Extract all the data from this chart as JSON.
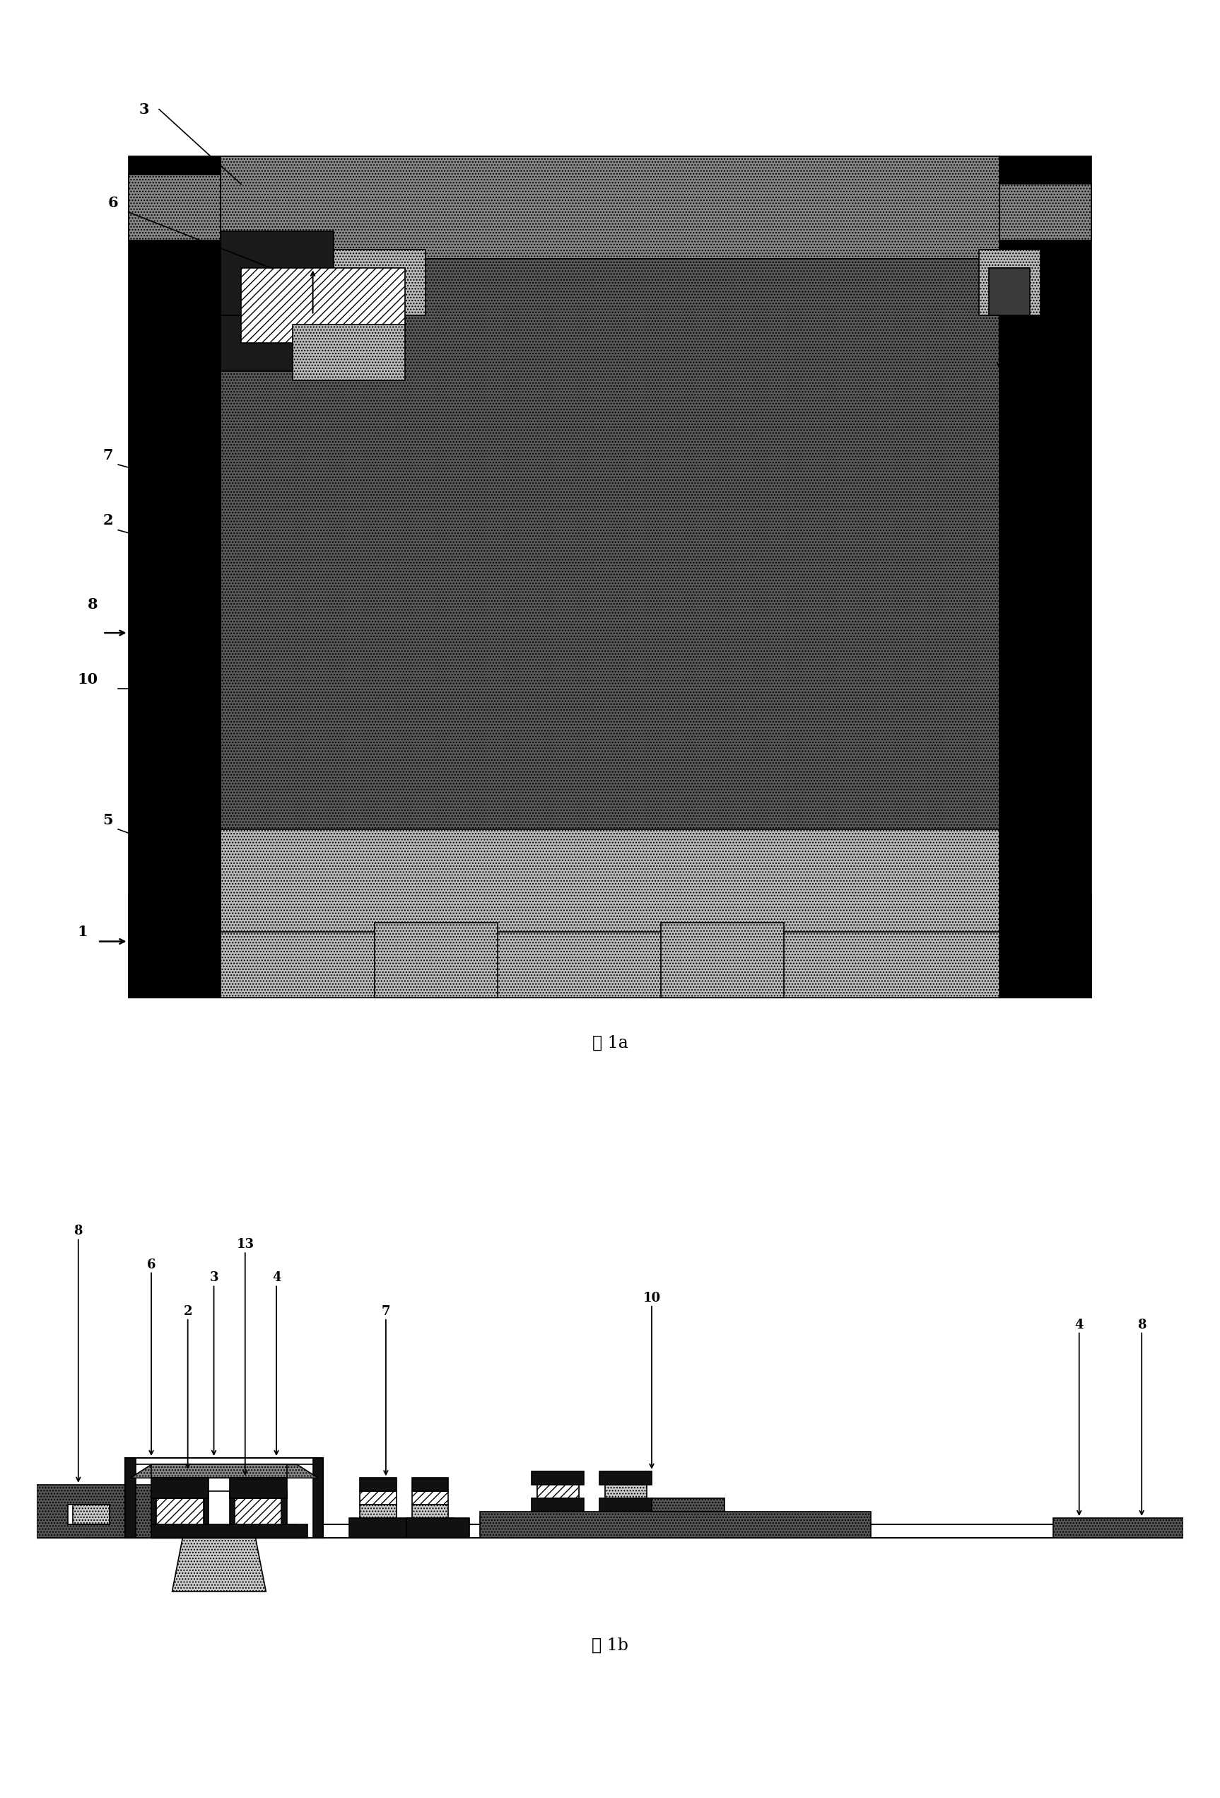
{
  "fig_width": 17.26,
  "fig_height": 25.43,
  "bg_color": "#ffffff",
  "fig1a_caption": "图 1a",
  "fig1b_caption": "图 1b"
}
